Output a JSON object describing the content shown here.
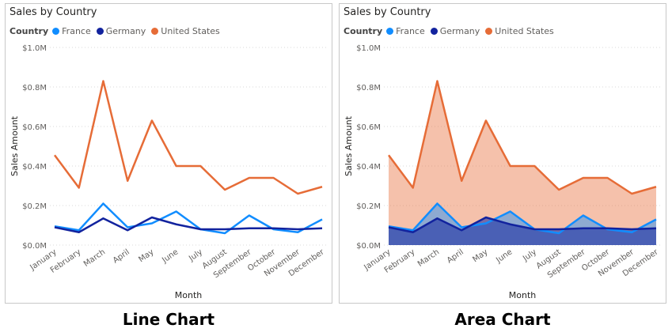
{
  "captions": {
    "left": "Line Chart",
    "right": "Area Chart"
  },
  "chart_data": [
    {
      "type": "line",
      "title": "Sales by Country",
      "legend_title": "Country",
      "legend_position": "top-left",
      "xlabel": "Month",
      "ylabel": "Sales Amount",
      "ylim": [
        0,
        1000000
      ],
      "yticks": [
        0,
        200000,
        400000,
        600000,
        800000,
        1000000
      ],
      "ytick_labels": [
        "$0.0M",
        "$0.2M",
        "$0.4M",
        "$0.6M",
        "$0.8M",
        "$1.0M"
      ],
      "grid": true,
      "categories": [
        "January",
        "February",
        "March",
        "April",
        "May",
        "June",
        "July",
        "August",
        "September",
        "October",
        "November",
        "December"
      ],
      "series": [
        {
          "name": "France",
          "color": "#118dff",
          "values": [
            95000,
            75000,
            210000,
            90000,
            110000,
            170000,
            80000,
            60000,
            150000,
            80000,
            65000,
            130000
          ]
        },
        {
          "name": "Germany",
          "color": "#12239e",
          "values": [
            90000,
            65000,
            135000,
            75000,
            140000,
            105000,
            80000,
            80000,
            85000,
            85000,
            80000,
            85000
          ]
        },
        {
          "name": "United States",
          "color": "#e66c37",
          "values": [
            455000,
            290000,
            830000,
            325000,
            630000,
            400000,
            400000,
            280000,
            340000,
            340000,
            260000,
            295000
          ]
        }
      ]
    },
    {
      "type": "area",
      "title": "Sales by Country",
      "legend_title": "Country",
      "legend_position": "top-left",
      "xlabel": "Month",
      "ylabel": "Sales Amount",
      "ylim": [
        0,
        1000000
      ],
      "yticks": [
        0,
        200000,
        400000,
        600000,
        800000,
        1000000
      ],
      "ytick_labels": [
        "$0.0M",
        "$0.2M",
        "$0.4M",
        "$0.6M",
        "$0.8M",
        "$1.0M"
      ],
      "grid": true,
      "categories": [
        "January",
        "February",
        "March",
        "April",
        "May",
        "June",
        "July",
        "August",
        "September",
        "October",
        "November",
        "December"
      ],
      "series": [
        {
          "name": "France",
          "color": "#118dff",
          "values": [
            95000,
            75000,
            210000,
            90000,
            110000,
            170000,
            80000,
            60000,
            150000,
            80000,
            65000,
            130000
          ]
        },
        {
          "name": "Germany",
          "color": "#12239e",
          "values": [
            90000,
            65000,
            135000,
            75000,
            140000,
            105000,
            80000,
            80000,
            85000,
            85000,
            80000,
            85000
          ]
        },
        {
          "name": "United States",
          "color": "#e66c37",
          "values": [
            455000,
            290000,
            830000,
            325000,
            630000,
            400000,
            400000,
            280000,
            340000,
            340000,
            260000,
            295000
          ]
        }
      ]
    }
  ]
}
